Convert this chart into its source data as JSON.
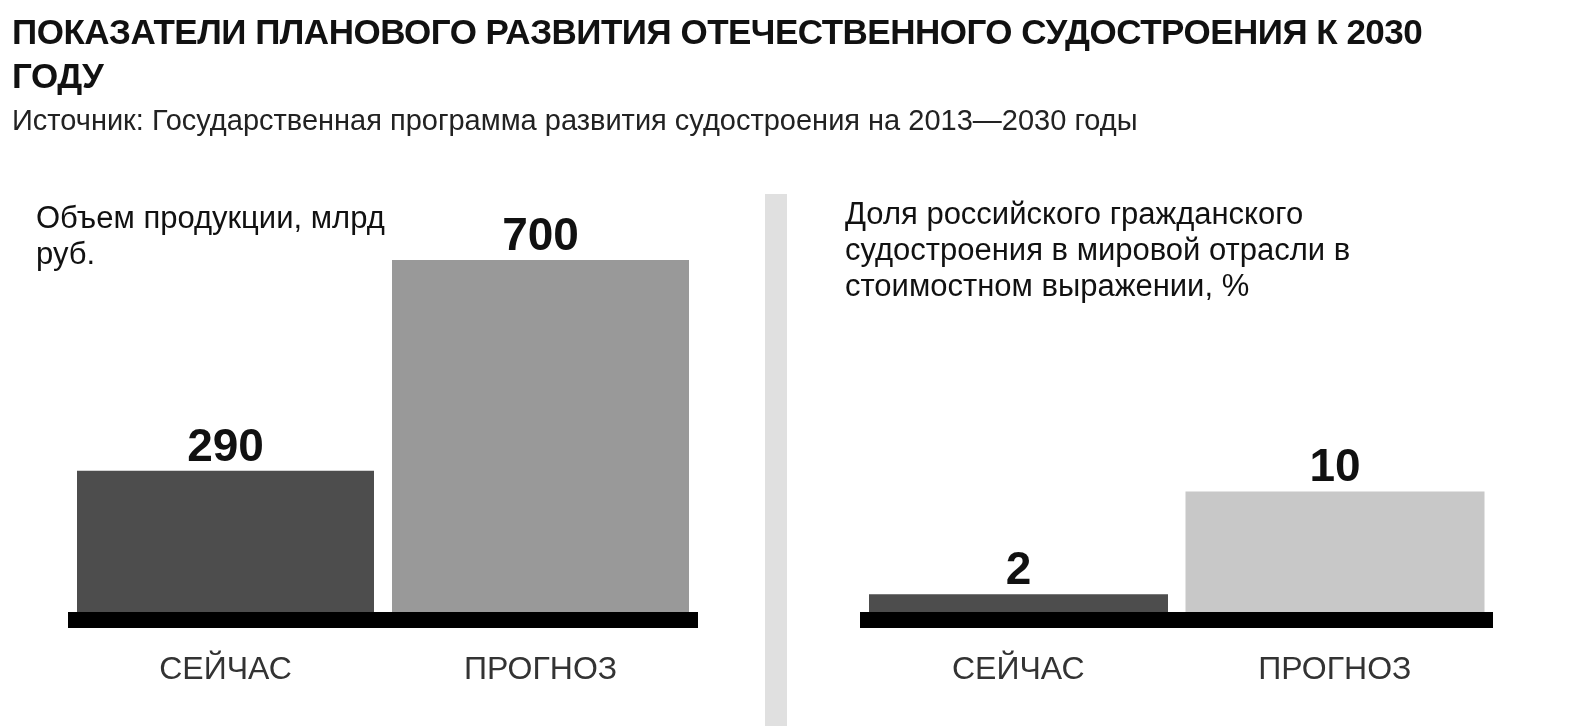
{
  "chart_data": [
    {
      "type": "bar",
      "title": "ПОКАЗАТЕЛИ ПЛАНОВОГО РАЗВИТИЯ ОТЕЧЕСТВЕННОГО СУДОСТРОЕНИЯ К 2030 ГОДУ",
      "annotations": [
        "Источник: Государственная программа развития судостроения на 2013—2030 годы"
      ],
      "subtitle": "Объем продукции, млрд руб.",
      "categories": [
        "СЕЙЧАС",
        "ПРОГНОЗ"
      ],
      "values": [
        290,
        700
      ],
      "colors": [
        "#4d4d4d",
        "#999999"
      ],
      "data_labels": true,
      "grid": false,
      "legend": false
    },
    {
      "type": "bar",
      "subtitle": "Доля российского гражданского судостроения в мировой отрасли в стоимостном выражении, %",
      "categories": [
        "СЕЙЧАС",
        "ПРОГНОЗ"
      ],
      "values": [
        2,
        10
      ],
      "colors": [
        "#4d4d4d",
        "#c8c8c8"
      ],
      "data_labels": true,
      "grid": false,
      "legend": false
    }
  ]
}
